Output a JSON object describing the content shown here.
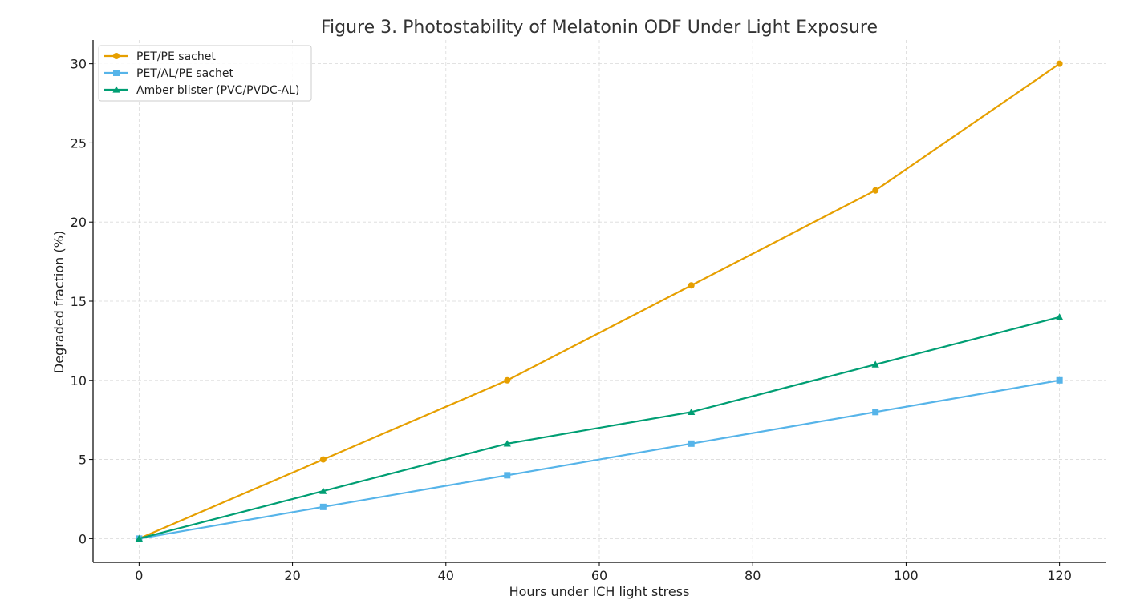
{
  "chart_data": {
    "type": "line",
    "title": "Figure 3. Photostability of Melatonin ODF Under Light Exposure",
    "xlabel": "Hours under ICH light stress",
    "ylabel": "Degraded fraction (%)",
    "x": [
      0,
      24,
      48,
      72,
      96,
      120
    ],
    "xlim": [
      -6,
      126
    ],
    "ylim": [
      -1.5,
      31.5
    ],
    "xticks": [
      0,
      20,
      40,
      60,
      80,
      100,
      120
    ],
    "yticks": [
      0,
      5,
      10,
      15,
      20,
      25,
      30
    ],
    "grid": true,
    "legend_position": "top-left",
    "series": [
      {
        "name": "PET/PE sachet",
        "values": [
          0,
          5,
          10,
          16,
          22,
          30
        ],
        "color": "#E69F00",
        "marker": "circle"
      },
      {
        "name": "PET/AL/PE sachet",
        "values": [
          0,
          2,
          4,
          6,
          8,
          10
        ],
        "color": "#56B4E9",
        "marker": "square"
      },
      {
        "name": "Amber blister (PVC/PVDC-AL)",
        "values": [
          0,
          3,
          6,
          8,
          11,
          14
        ],
        "color": "#009E73",
        "marker": "triangle"
      }
    ]
  }
}
